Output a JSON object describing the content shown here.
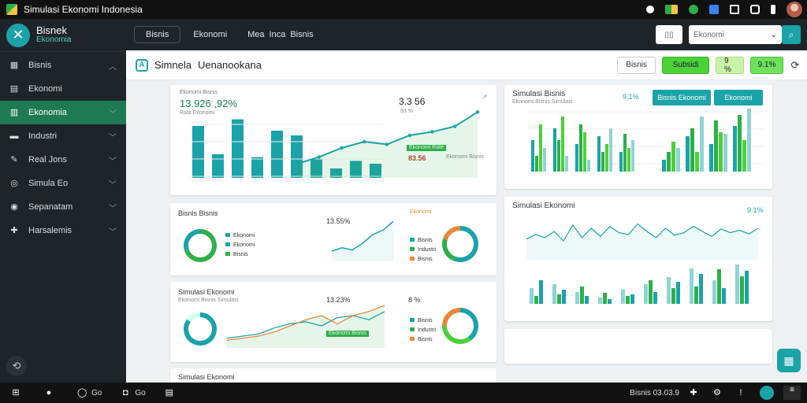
{
  "window": {
    "title": "Simulasi Ekonomi Indonesia"
  },
  "brand": {
    "name": "Bisnek",
    "subtitle": "Ekonomia"
  },
  "sidebar": {
    "items": [
      {
        "label": "Bisnis",
        "icon": "briefcase-icon",
        "glyph": "▦",
        "chevron": "︿"
      },
      {
        "label": "Ekonomi",
        "icon": "document-icon",
        "glyph": "▤",
        "chevron": ""
      },
      {
        "label": "Ekonomia",
        "icon": "chart-icon",
        "glyph": "▥",
        "chevron": "﹀",
        "active": true
      },
      {
        "label": "Industri",
        "icon": "factory-icon",
        "glyph": "▬",
        "chevron": "﹀"
      },
      {
        "label": "Real Jons",
        "icon": "pin-icon",
        "glyph": "✎",
        "chevron": "﹀"
      },
      {
        "label": "Simula Eo",
        "icon": "target-icon",
        "glyph": "◎",
        "chevron": "﹀"
      },
      {
        "label": "Sepanatam",
        "icon": "gauge-icon",
        "glyph": "◉",
        "chevron": "﹀"
      },
      {
        "label": "Harsalemis",
        "icon": "puzzle-icon",
        "glyph": "✚",
        "chevron": "﹀"
      }
    ]
  },
  "topbar": {
    "button": "Bisnis",
    "link1": "Ekonomi",
    "link2": "Mea",
    "link3": "Inca",
    "link4": "Bisnis",
    "small": "▯▯",
    "select_value": "Ekonomi",
    "search_icon": "search-icon"
  },
  "page": {
    "title": "Simnela",
    "subtitle": "Uenanookana"
  },
  "page_actions": {
    "b1": "Bisnis",
    "b2": "Subsidi",
    "b3": "9 %",
    "b4": "9.1%"
  },
  "cards": {
    "c1": {
      "value": "13.926 ,92%",
      "sub": "Rata Ekonomi",
      "value2": "3.3 56",
      "pct": "93 %",
      "tag": "Ekonomi Rate",
      "badge": "83.56",
      "note": "Ekonomi Bisnis"
    },
    "c2": {
      "title": "Simulasi Bisnis",
      "pct": "9.1%",
      "btn1": "Bisnis Ekonomi",
      "btn2": "Ekonomi"
    },
    "c3": {
      "title": "Simulasi Ekonomi",
      "pct": "9.1%"
    },
    "c4": {
      "title": "Bisnis Bisnis",
      "value": "13.55%",
      "pct": "Ekonomi",
      "legend": [
        "Ekonomi",
        "Ekonomi",
        "Bisnis"
      ],
      "rlegend": [
        "Bisnis",
        "Industri",
        "Bisnis"
      ]
    },
    "c5": {
      "title": "Simulasi Ekonomi",
      "sub": "Ekonomi Bisnis Simulasi",
      "value": "13.23%",
      "pct": "8 %",
      "tag": "Ekonomi Bisnis",
      "rlegend": [
        "Bisnis",
        "Industri",
        "Bisnis"
      ]
    },
    "c6": {
      "title": "Simulasi Ekonomi",
      "sub": "Ekonomi Bisnis"
    }
  },
  "taskbar": {
    "items": [
      "",
      "Go",
      "Go",
      ""
    ],
    "clock": "Bisnis 03.03.9"
  },
  "colors": {
    "teal": "#1aa3a8",
    "green": "#2eaf4a",
    "lightgreen": "#4cd137",
    "orange": "#e8883a"
  },
  "chart_data": [
    {
      "type": "bar",
      "categories": [
        "1",
        "2",
        "3",
        "4",
        "5",
        "6",
        "7",
        "8",
        "9",
        "10"
      ],
      "values": [
        55,
        25,
        62,
        22,
        50,
        45,
        20,
        10,
        18,
        15
      ],
      "title": ""
    },
    {
      "type": "line",
      "x": [
        1,
        2,
        3,
        4,
        5,
        6,
        7,
        8,
        9
      ],
      "values": [
        10,
        18,
        28,
        35,
        32,
        42,
        46,
        52,
        68
      ],
      "title": ""
    }
  ]
}
